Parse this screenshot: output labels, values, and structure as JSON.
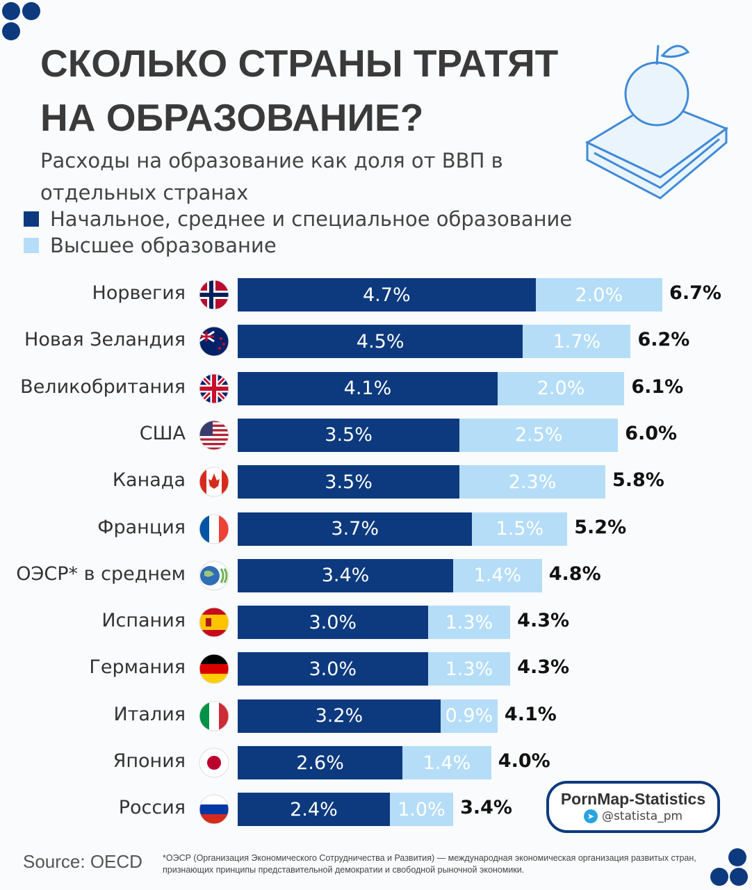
{
  "title": "СКОЛЬКО СТРАНЫ ТРАТЯТ НА ОБРАЗОВАНИЕ?",
  "subtitle": "Расходы на образование как доля от ВВП в отдельных странах",
  "colors": {
    "primary": "#0d3a7e",
    "higher": "#b5ddf8"
  },
  "chart_data": {
    "type": "bar",
    "stacked": true,
    "orientation": "horizontal",
    "title": "СКОЛЬКО СТРАНЫ ТРАТЯТ НА ОБРАЗОВАНИЕ?",
    "legend": [
      "Начальное, среднее и специальное образование",
      "Высшее образование"
    ],
    "categories": [
      "Норвегия",
      "Новая Зеландия",
      "Великобритания",
      "США",
      "Канада",
      "Франция",
      "ОЭСР* в среднем",
      "Испания",
      "Германия",
      "Италия",
      "Япония",
      "Россия"
    ],
    "flags": [
      "norway",
      "new-zealand",
      "uk",
      "usa",
      "canada",
      "france",
      "oecd",
      "spain",
      "germany",
      "italy",
      "japan",
      "russia"
    ],
    "series": [
      {
        "name": "Начальное, среднее и специальное образование",
        "values": [
          4.7,
          4.5,
          4.1,
          3.5,
          3.5,
          3.7,
          3.4,
          3.0,
          3.0,
          3.2,
          2.6,
          2.4
        ],
        "labels": [
          "4.7%",
          "4.5%",
          "4.1%",
          "3.5%",
          "3.5%",
          "3.7%",
          "3.4%",
          "3.0%",
          "3.0%",
          "3.2%",
          "2.6%",
          "2.4%"
        ]
      },
      {
        "name": "Высшее образование",
        "values": [
          2.0,
          1.7,
          2.0,
          2.5,
          2.3,
          1.5,
          1.4,
          1.3,
          1.3,
          0.9,
          1.4,
          1.0
        ],
        "labels": [
          "2.0%",
          "1.7%",
          "2.0%",
          "2.5%",
          "2.3%",
          "1.5%",
          "1.4%",
          "1.3%",
          "1.3%",
          "0.9%",
          "1.4%",
          "1.0%"
        ]
      }
    ],
    "totals": [
      "6.7%",
      "6.2%",
      "6.1%",
      "6.0%",
      "5.8%",
      "5.2%",
      "4.8%",
      "4.3%",
      "4.3%",
      "4.1%",
      "4.0%",
      "3.4%"
    ],
    "unit": "% ВВП"
  },
  "footer": {
    "source": "Source: OECD",
    "note": "*ОЭСР (Организация Экономического Сотрудничества и Развития) — международная экономическая организация развитых стран, признающих принципы представительной демократии и свободной рыночной экономики."
  },
  "watermark": {
    "name": "PornMap-Statistics",
    "handle": "@statista_pm"
  }
}
